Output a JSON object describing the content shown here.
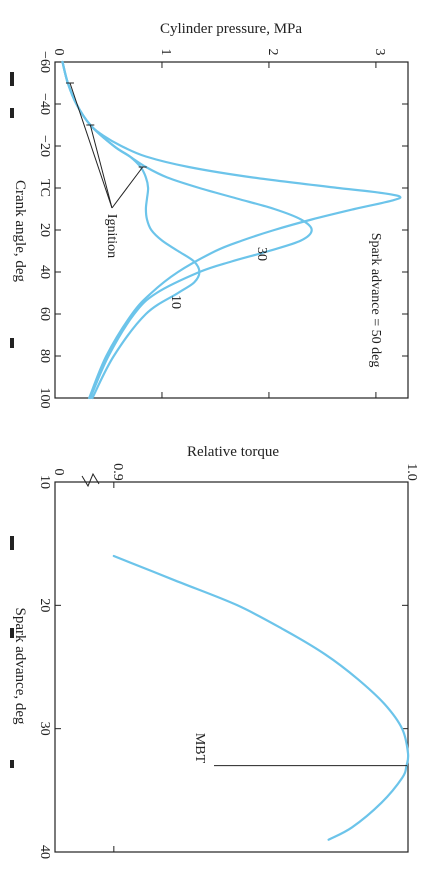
{
  "colors": {
    "curve": "#6cc4ea",
    "ink": "#222222",
    "background": "#ffffff"
  },
  "chart_data": [
    {
      "type": "line",
      "orientation": "rotated 90° clockwise on the page",
      "ylabel": "Cylinder pressure, MPa",
      "xlabel": "Crank angle, deg",
      "xlim": [
        -60,
        100
      ],
      "ylim": [
        0,
        3.3
      ],
      "x_tick_labels": [
        "−60",
        "−40",
        "−20",
        "TC",
        "20",
        "40",
        "60",
        "80",
        "100"
      ],
      "x_ticks": [
        -60,
        -40,
        -20,
        0,
        20,
        40,
        60,
        80,
        100
      ],
      "y_tick_labels": [
        "0",
        "1",
        "2",
        "3"
      ],
      "y_ticks": [
        0,
        1,
        2,
        3
      ],
      "annotations": {
        "spark_50": "Spark advance = 50 deg",
        "spark_30": "30",
        "spark_10": "10",
        "ignition": "Ignition"
      },
      "series": [
        {
          "spark_advance": 50,
          "x": [
            -60,
            -50,
            -40,
            -30,
            -25,
            -20,
            -15,
            -10,
            -5,
            0,
            2,
            4,
            6,
            10,
            15,
            20,
            25,
            30,
            40,
            50,
            60,
            80,
            100
          ],
          "y": [
            0.07,
            0.12,
            0.2,
            0.33,
            0.45,
            0.62,
            0.85,
            1.25,
            1.85,
            2.65,
            3.0,
            3.22,
            3.15,
            2.8,
            2.4,
            2.05,
            1.75,
            1.5,
            1.15,
            0.9,
            0.72,
            0.48,
            0.32
          ]
        },
        {
          "spark_advance": 30,
          "x": [
            -60,
            -50,
            -40,
            -30,
            -20,
            -15,
            -10,
            -5,
            0,
            5,
            10,
            15,
            20,
            25,
            30,
            35,
            40,
            50,
            60,
            80,
            100
          ],
          "y": [
            0.07,
            0.12,
            0.2,
            0.33,
            0.55,
            0.7,
            0.85,
            1.05,
            1.35,
            1.7,
            2.05,
            2.3,
            2.4,
            2.3,
            2.0,
            1.65,
            1.35,
            0.95,
            0.74,
            0.5,
            0.33
          ]
        },
        {
          "spark_advance": 10,
          "x": [
            -60,
            -50,
            -40,
            -30,
            -20,
            -15,
            -10,
            -5,
            0,
            5,
            10,
            15,
            20,
            25,
            30,
            35,
            40,
            45,
            50,
            60,
            80,
            100
          ],
          "y": [
            0.07,
            0.12,
            0.2,
            0.33,
            0.55,
            0.7,
            0.8,
            0.85,
            0.87,
            0.86,
            0.85,
            0.86,
            0.9,
            1.0,
            1.15,
            1.3,
            1.35,
            1.3,
            1.15,
            0.85,
            0.55,
            0.35
          ]
        }
      ],
      "ignition_points": [
        {
          "x": -50,
          "y": 0.14
        },
        {
          "x": -30,
          "y": 0.33
        },
        {
          "x": -10,
          "y": 0.82
        }
      ]
    },
    {
      "type": "line",
      "orientation": "rotated 90° clockwise on the page",
      "ylabel": "Relative torque",
      "xlabel": "Spark advance, deg",
      "xlim": [
        10,
        40
      ],
      "ylim": [
        0.88,
        1.0
      ],
      "axis_break": "y axis broken between 0 and 0.9",
      "x_tick_labels": [
        "10",
        "20",
        "30",
        "40"
      ],
      "x_ticks": [
        10,
        20,
        30,
        40
      ],
      "y_tick_labels": [
        "0",
        "0.9",
        "1.0"
      ],
      "y_ticks": [
        0.9,
        1.0
      ],
      "annotations": {
        "mbt": "MBT"
      },
      "series": [
        {
          "x": [
            16,
            18,
            20,
            22,
            24,
            26,
            28,
            30,
            32,
            33,
            34,
            36,
            38,
            39
          ],
          "y": [
            0.9,
            0.921,
            0.942,
            0.958,
            0.972,
            0.983,
            0.992,
            0.998,
            1.0,
            0.9995,
            0.998,
            0.991,
            0.981,
            0.973
          ]
        }
      ],
      "mbt_x": 33
    }
  ]
}
